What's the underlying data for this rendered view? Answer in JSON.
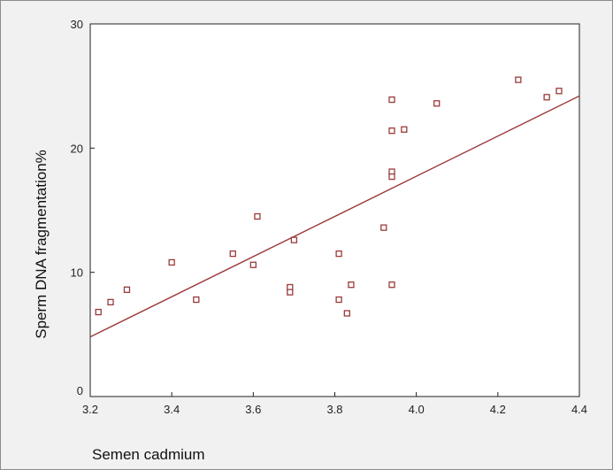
{
  "chart_data": {
    "type": "scatter",
    "title": "",
    "xlabel": "Semen cadmium",
    "ylabel": "Sperm DNA fragmentation%",
    "xlim": [
      3.2,
      4.4
    ],
    "ylim": [
      0,
      30
    ],
    "xticks": [
      "3.2",
      "3.4",
      "3.6",
      "3.8",
      "4.0",
      "4.2",
      "4.4"
    ],
    "yticks": [
      "0",
      "10",
      "20",
      "30"
    ],
    "grid": false,
    "legend": "none",
    "marker_color": "#9b3a3a",
    "line_color": "#9b3a3a",
    "points": [
      {
        "x": 3.22,
        "y": 6.8
      },
      {
        "x": 3.25,
        "y": 7.6
      },
      {
        "x": 3.29,
        "y": 8.6
      },
      {
        "x": 3.4,
        "y": 10.8
      },
      {
        "x": 3.46,
        "y": 7.8
      },
      {
        "x": 3.55,
        "y": 11.5
      },
      {
        "x": 3.6,
        "y": 10.6
      },
      {
        "x": 3.61,
        "y": 14.5
      },
      {
        "x": 3.69,
        "y": 8.8
      },
      {
        "x": 3.69,
        "y": 8.4
      },
      {
        "x": 3.7,
        "y": 12.6
      },
      {
        "x": 3.81,
        "y": 11.5
      },
      {
        "x": 3.81,
        "y": 7.8
      },
      {
        "x": 3.83,
        "y": 6.7
      },
      {
        "x": 3.84,
        "y": 9.0
      },
      {
        "x": 3.92,
        "y": 13.6
      },
      {
        "x": 3.94,
        "y": 23.9
      },
      {
        "x": 3.94,
        "y": 21.4
      },
      {
        "x": 3.94,
        "y": 18.1
      },
      {
        "x": 3.94,
        "y": 17.7
      },
      {
        "x": 3.94,
        "y": 9.0
      },
      {
        "x": 3.97,
        "y": 21.5
      },
      {
        "x": 4.05,
        "y": 23.6
      },
      {
        "x": 4.25,
        "y": 25.5
      },
      {
        "x": 4.32,
        "y": 24.1
      },
      {
        "x": 4.35,
        "y": 24.6
      }
    ],
    "fit_line": {
      "x": [
        3.2,
        4.4
      ],
      "y": [
        4.8,
        24.2
      ]
    }
  }
}
